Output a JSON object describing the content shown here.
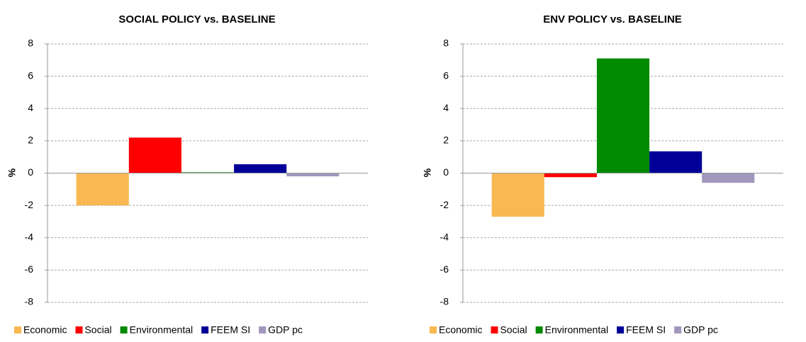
{
  "chart_data": [
    {
      "type": "bar",
      "title": "SOCIAL POLICY vs. BASELINE",
      "y_label": "%",
      "categories": [
        null
      ],
      "series": [
        {
          "name": "Economic",
          "color": "#f9b851",
          "values": [
            -2.0
          ]
        },
        {
          "name": "Social",
          "color": "#ff0000",
          "values": [
            2.2
          ]
        },
        {
          "name": "Environmental",
          "color": "#008a00",
          "values": [
            0.05
          ]
        },
        {
          "name": "FEEM SI",
          "color": "#000099",
          "values": [
            0.55
          ]
        },
        {
          "name": "GDP pc",
          "color": "#a197bd",
          "values": [
            -0.2
          ]
        }
      ],
      "ylim": [
        -8,
        8
      ],
      "yticks": [
        -8,
        -6,
        -4,
        -2,
        0,
        2,
        4,
        6,
        8
      ],
      "grid": true,
      "legend": "bottom"
    },
    {
      "type": "bar",
      "title": "ENV POLICY vs. BASELINE",
      "y_label": "%",
      "categories": [
        null
      ],
      "series": [
        {
          "name": "Economic",
          "color": "#f9b851",
          "values": [
            -2.7
          ]
        },
        {
          "name": "Social",
          "color": "#ff0000",
          "values": [
            -0.25
          ]
        },
        {
          "name": "Environmental",
          "color": "#008a00",
          "values": [
            7.1
          ]
        },
        {
          "name": "FEEM SI",
          "color": "#000099",
          "values": [
            1.35
          ]
        },
        {
          "name": "GDP pc",
          "color": "#a197bd",
          "values": [
            -0.6
          ]
        }
      ],
      "ylim": [
        -8,
        8
      ],
      "yticks": [
        -8,
        -6,
        -4,
        -2,
        0,
        2,
        4,
        6,
        8
      ],
      "grid": true,
      "legend": "bottom"
    }
  ]
}
